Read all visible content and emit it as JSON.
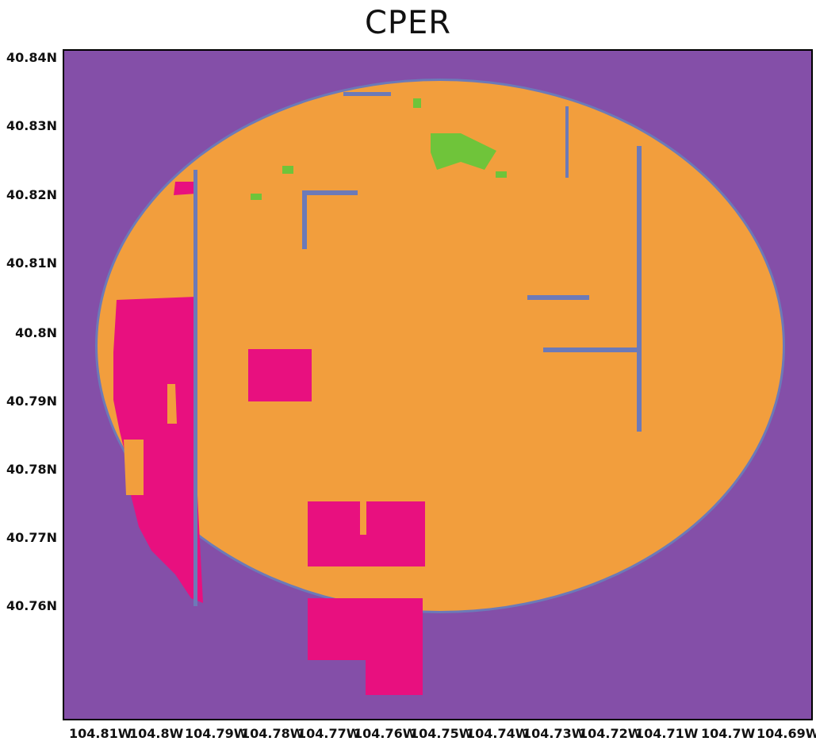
{
  "title": "CPER",
  "colors": {
    "background": "#844fa8",
    "grassland": "#f29e3d",
    "cropland": "#e8107f",
    "woody": "#6c7ab8",
    "green": "#6fc43a"
  },
  "map": {
    "y_ticks": [
      "40.84N",
      "40.83N",
      "40.82N",
      "40.81N",
      "40.8N",
      "40.79N",
      "40.78N",
      "40.77N",
      "40.76N"
    ],
    "x_ticks": [
      "104.81W",
      "104.8W",
      "104.79W",
      "104.78W",
      "104.77W",
      "104.76W",
      "104.75W",
      "104.74W",
      "104.73W",
      "104.72W",
      "104.71W",
      "104.7W",
      "104.69W"
    ]
  }
}
